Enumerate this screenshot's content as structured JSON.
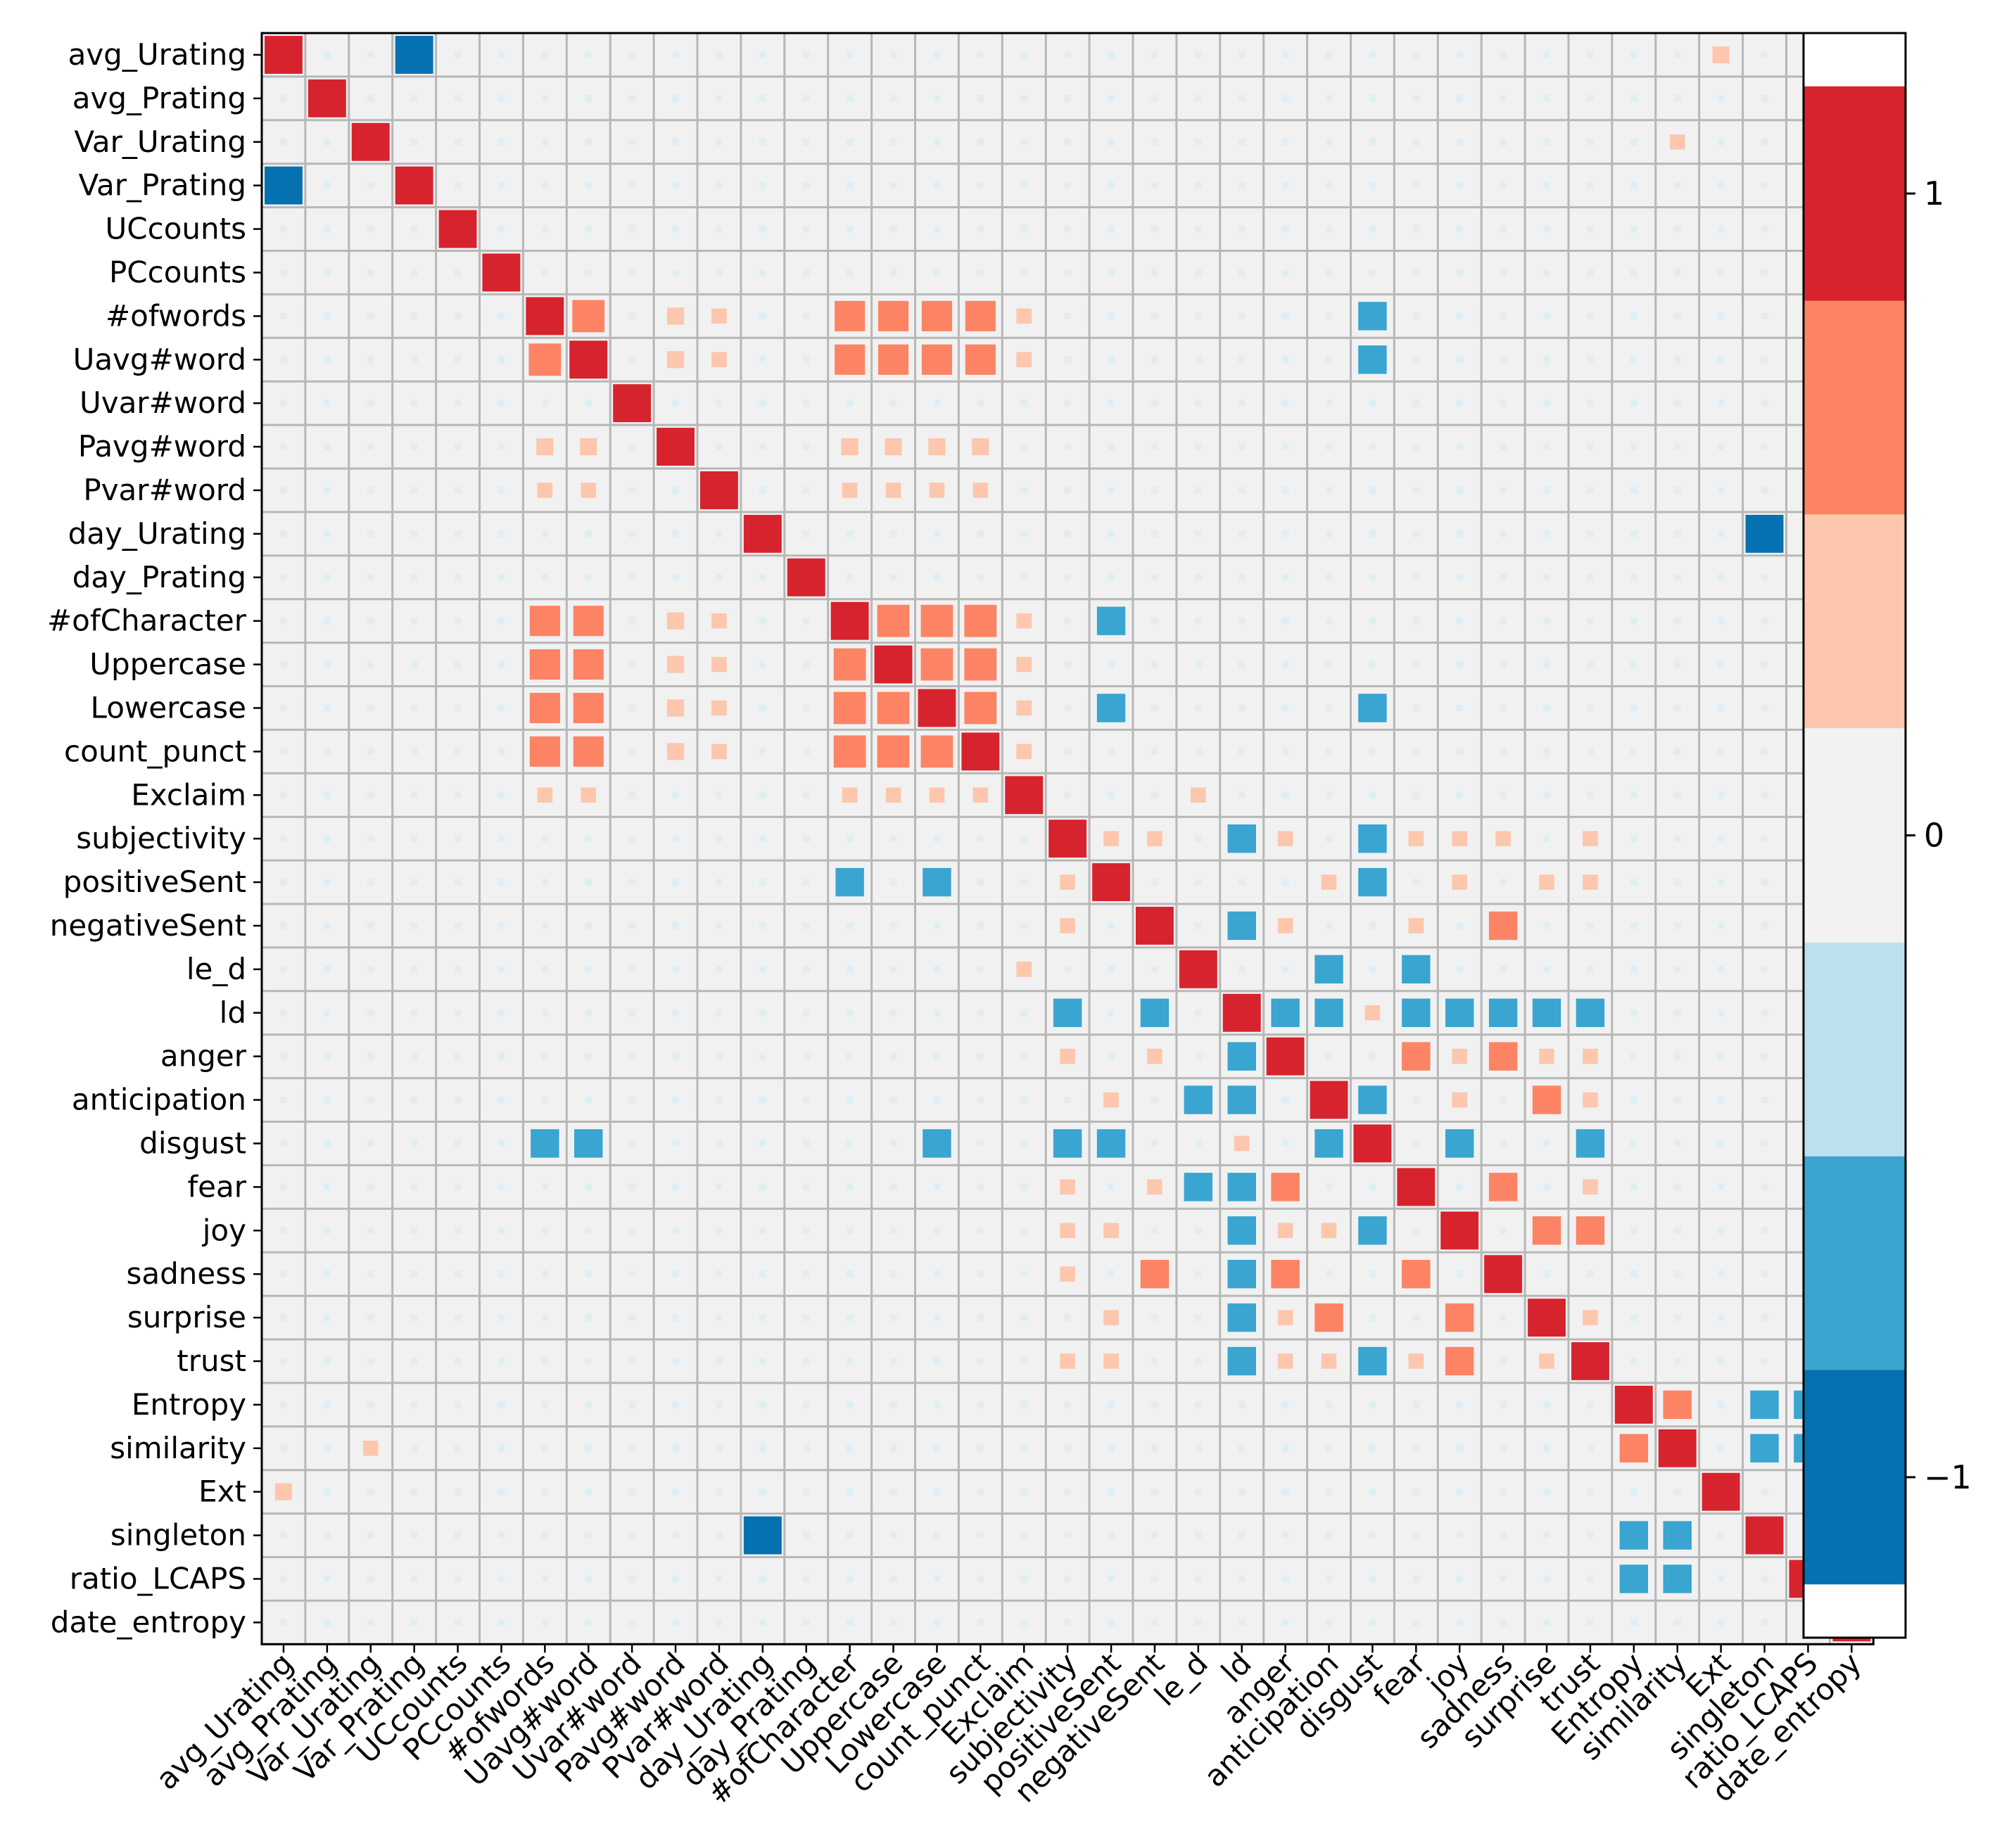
{
  "chart_data": {
    "type": "heatmap",
    "title": "",
    "xlabel": "",
    "ylabel": "",
    "variables": [
      "avg_Urating",
      "avg_Prating",
      "Var_Urating",
      "Var_Prating",
      "UCcounts",
      "PCcounts",
      "#ofwords",
      "Uavg#word",
      "Uvar#word",
      "Pavg#word",
      "Pvar#word",
      "day_Urating",
      "day_Prating",
      "#ofCharacter",
      "Uppercase",
      "Lowercase",
      "count_punct",
      "Exclaim",
      "subjectivity",
      "positiveSent",
      "negativeSent",
      "le_d",
      "ld",
      "anger",
      "anticipation",
      "disgust",
      "fear",
      "joy",
      "sadness",
      "surprise",
      "trust",
      "Entropy",
      "similarity",
      "Ext",
      "singleton",
      "ratio_LCAPS",
      "date_entropy"
    ],
    "value_range": [
      -1.25,
      1.25
    ],
    "colorbar": {
      "ticks": [
        -1,
        0,
        1
      ],
      "tick_labels": [
        "−1",
        "0",
        "1"
      ],
      "bins": [
        {
          "from": -1.25,
          "to": -1.0,
          "color": "#0571b0"
        },
        {
          "from": -1.0,
          "to": -0.6667,
          "color": "#3aa5d0"
        },
        {
          "from": -0.6667,
          "to": -0.3333,
          "color": "#bde0ef"
        },
        {
          "from": -0.3333,
          "to": 0.0,
          "color": "#f2f2f2"
        },
        {
          "from": 0.0,
          "to": 0.3333,
          "color": "#f2f2f2"
        },
        {
          "from": 0.3333,
          "to": 0.6667,
          "color": "#fdc7ad"
        },
        {
          "from": 0.6667,
          "to": 1.0,
          "color": "#fc8464"
        },
        {
          "from": 1.0,
          "to": 1.25,
          "color": "#d7232e"
        }
      ]
    },
    "note": "Matrix is symmetric; cells not listed have correlation approximately 0 (rendered light grey). Diagonal = 1.",
    "cells": [
      {
        "r": "avg_Urating",
        "c": "Var_Prating",
        "v": -1.1
      },
      {
        "r": "avg_Urating",
        "c": "Ext",
        "v": 0.45
      },
      {
        "r": "Var_Urating",
        "c": "similarity",
        "v": 0.4
      },
      {
        "r": "day_Urating",
        "c": "singleton",
        "v": -1.1
      },
      {
        "r": "#ofwords",
        "c": "Uavg#word",
        "v": 0.85
      },
      {
        "r": "#ofwords",
        "c": "Pavg#word",
        "v": 0.45
      },
      {
        "r": "#ofwords",
        "c": "Pvar#word",
        "v": 0.4
      },
      {
        "r": "#ofwords",
        "c": "#ofCharacter",
        "v": 0.8
      },
      {
        "r": "#ofwords",
        "c": "Uppercase",
        "v": 0.8
      },
      {
        "r": "#ofwords",
        "c": "Lowercase",
        "v": 0.8
      },
      {
        "r": "#ofwords",
        "c": "count_punct",
        "v": 0.8
      },
      {
        "r": "#ofwords",
        "c": "Exclaim",
        "v": 0.4
      },
      {
        "r": "#ofwords",
        "c": "disgust",
        "v": -0.75
      },
      {
        "r": "Uavg#word",
        "c": "Pavg#word",
        "v": 0.45
      },
      {
        "r": "Uavg#word",
        "c": "Pvar#word",
        "v": 0.4
      },
      {
        "r": "Uavg#word",
        "c": "#ofCharacter",
        "v": 0.8
      },
      {
        "r": "Uavg#word",
        "c": "Uppercase",
        "v": 0.8
      },
      {
        "r": "Uavg#word",
        "c": "Lowercase",
        "v": 0.8
      },
      {
        "r": "Uavg#word",
        "c": "count_punct",
        "v": 0.8
      },
      {
        "r": "Uavg#word",
        "c": "Exclaim",
        "v": 0.4
      },
      {
        "r": "Uavg#word",
        "c": "disgust",
        "v": -0.75
      },
      {
        "r": "Pavg#word",
        "c": "#ofCharacter",
        "v": 0.45
      },
      {
        "r": "Pavg#word",
        "c": "Uppercase",
        "v": 0.45
      },
      {
        "r": "Pavg#word",
        "c": "Lowercase",
        "v": 0.45
      },
      {
        "r": "Pavg#word",
        "c": "count_punct",
        "v": 0.45
      },
      {
        "r": "Pvar#word",
        "c": "#ofCharacter",
        "v": 0.4
      },
      {
        "r": "Pvar#word",
        "c": "Uppercase",
        "v": 0.4
      },
      {
        "r": "Pvar#word",
        "c": "Lowercase",
        "v": 0.4
      },
      {
        "r": "Pvar#word",
        "c": "count_punct",
        "v": 0.4
      },
      {
        "r": "#ofCharacter",
        "c": "Uppercase",
        "v": 0.85
      },
      {
        "r": "#ofCharacter",
        "c": "Lowercase",
        "v": 0.85
      },
      {
        "r": "#ofCharacter",
        "c": "count_punct",
        "v": 0.85
      },
      {
        "r": "#ofCharacter",
        "c": "Exclaim",
        "v": 0.4
      },
      {
        "r": "#ofCharacter",
        "c": "positiveSent",
        "v": -0.75
      },
      {
        "r": "Uppercase",
        "c": "Lowercase",
        "v": 0.85
      },
      {
        "r": "Uppercase",
        "c": "count_punct",
        "v": 0.85
      },
      {
        "r": "Uppercase",
        "c": "Exclaim",
        "v": 0.4
      },
      {
        "r": "Lowercase",
        "c": "count_punct",
        "v": 0.85
      },
      {
        "r": "Lowercase",
        "c": "Exclaim",
        "v": 0.4
      },
      {
        "r": "Lowercase",
        "c": "positiveSent",
        "v": -0.75
      },
      {
        "r": "Lowercase",
        "c": "disgust",
        "v": -0.75
      },
      {
        "r": "count_punct",
        "c": "Exclaim",
        "v": 0.4
      },
      {
        "r": "Exclaim",
        "c": "le_d",
        "v": 0.4
      },
      {
        "r": "subjectivity",
        "c": "positiveSent",
        "v": 0.4
      },
      {
        "r": "subjectivity",
        "c": "negativeSent",
        "v": 0.4
      },
      {
        "r": "subjectivity",
        "c": "ld",
        "v": -0.75
      },
      {
        "r": "subjectivity",
        "c": "anger",
        "v": 0.4
      },
      {
        "r": "subjectivity",
        "c": "disgust",
        "v": -0.75
      },
      {
        "r": "subjectivity",
        "c": "fear",
        "v": 0.4
      },
      {
        "r": "subjectivity",
        "c": "joy",
        "v": 0.4
      },
      {
        "r": "subjectivity",
        "c": "sadness",
        "v": 0.4
      },
      {
        "r": "subjectivity",
        "c": "trust",
        "v": 0.4
      },
      {
        "r": "positiveSent",
        "c": "anticipation",
        "v": 0.4
      },
      {
        "r": "positiveSent",
        "c": "disgust",
        "v": -0.75
      },
      {
        "r": "positiveSent",
        "c": "joy",
        "v": 0.4
      },
      {
        "r": "positiveSent",
        "c": "surprise",
        "v": 0.4
      },
      {
        "r": "positiveSent",
        "c": "trust",
        "v": 0.4
      },
      {
        "r": "negativeSent",
        "c": "ld",
        "v": -0.75
      },
      {
        "r": "negativeSent",
        "c": "anger",
        "v": 0.4
      },
      {
        "r": "negativeSent",
        "c": "fear",
        "v": 0.4
      },
      {
        "r": "negativeSent",
        "c": "sadness",
        "v": 0.75
      },
      {
        "r": "le_d",
        "c": "anticipation",
        "v": -0.75
      },
      {
        "r": "le_d",
        "c": "fear",
        "v": -0.75
      },
      {
        "r": "ld",
        "c": "anger",
        "v": -0.75
      },
      {
        "r": "ld",
        "c": "anticipation",
        "v": -0.75
      },
      {
        "r": "ld",
        "c": "disgust",
        "v": 0.4
      },
      {
        "r": "ld",
        "c": "fear",
        "v": -0.75
      },
      {
        "r": "ld",
        "c": "joy",
        "v": -0.75
      },
      {
        "r": "ld",
        "c": "sadness",
        "v": -0.75
      },
      {
        "r": "ld",
        "c": "surprise",
        "v": -0.75
      },
      {
        "r": "ld",
        "c": "trust",
        "v": -0.75
      },
      {
        "r": "anger",
        "c": "fear",
        "v": 0.75
      },
      {
        "r": "anger",
        "c": "joy",
        "v": 0.4
      },
      {
        "r": "anger",
        "c": "sadness",
        "v": 0.75
      },
      {
        "r": "anger",
        "c": "surprise",
        "v": 0.4
      },
      {
        "r": "anger",
        "c": "trust",
        "v": 0.4
      },
      {
        "r": "anticipation",
        "c": "disgust",
        "v": -0.75
      },
      {
        "r": "anticipation",
        "c": "joy",
        "v": 0.4
      },
      {
        "r": "anticipation",
        "c": "surprise",
        "v": 0.75
      },
      {
        "r": "anticipation",
        "c": "trust",
        "v": 0.4
      },
      {
        "r": "disgust",
        "c": "joy",
        "v": -0.75
      },
      {
        "r": "disgust",
        "c": "trust",
        "v": -0.75
      },
      {
        "r": "fear",
        "c": "sadness",
        "v": 0.75
      },
      {
        "r": "fear",
        "c": "trust",
        "v": 0.4
      },
      {
        "r": "joy",
        "c": "surprise",
        "v": 0.75
      },
      {
        "r": "joy",
        "c": "trust",
        "v": 0.75
      },
      {
        "r": "surprise",
        "c": "trust",
        "v": 0.4
      },
      {
        "r": "Entropy",
        "c": "similarity",
        "v": 0.75
      },
      {
        "r": "Entropy",
        "c": "singleton",
        "v": -0.75
      },
      {
        "r": "Entropy",
        "c": "ratio_LCAPS",
        "v": -0.75
      },
      {
        "r": "similarity",
        "c": "singleton",
        "v": -0.75
      },
      {
        "r": "similarity",
        "c": "ratio_LCAPS",
        "v": -0.75
      }
    ]
  }
}
